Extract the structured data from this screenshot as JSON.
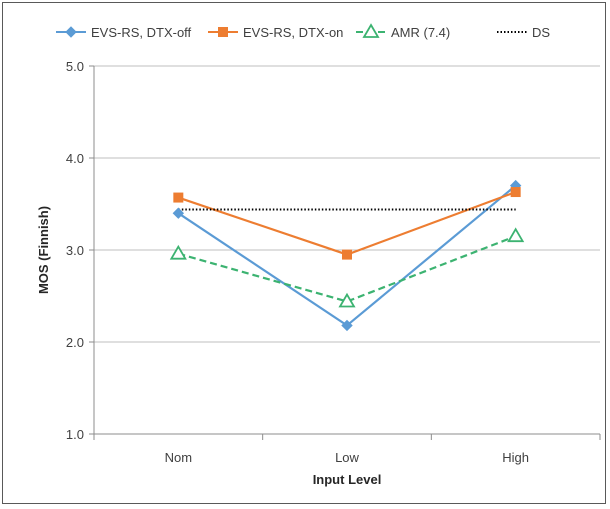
{
  "chart_data": {
    "type": "line",
    "title": "",
    "xlabel": "Input Level",
    "ylabel": "MOS (Finnish)",
    "categories": [
      "Nom",
      "Low",
      "High"
    ],
    "ylim": [
      1.0,
      5.0
    ],
    "yticks": [
      "1.0",
      "2.0",
      "3.0",
      "4.0",
      "5.0"
    ],
    "grid": "horizontal",
    "legend_position": "top",
    "series": [
      {
        "name": "EVS-RS, DTX-off",
        "values": [
          3.4,
          2.18,
          3.7
        ],
        "color": "#5B9BD5",
        "marker": "diamond",
        "dash": "solid"
      },
      {
        "name": "EVS-RS, DTX-on",
        "values": [
          3.57,
          2.95,
          3.63
        ],
        "color": "#ED7D31",
        "marker": "square",
        "dash": "solid"
      },
      {
        "name": "AMR (7.4)",
        "values": [
          2.96,
          2.44,
          3.15
        ],
        "color": "#3CB371",
        "marker": "triangle",
        "dash": "dashed"
      },
      {
        "name": "DS",
        "values": [
          3.44,
          3.44,
          3.44
        ],
        "color": "#000000",
        "marker": "none",
        "dash": "dotted"
      }
    ]
  }
}
